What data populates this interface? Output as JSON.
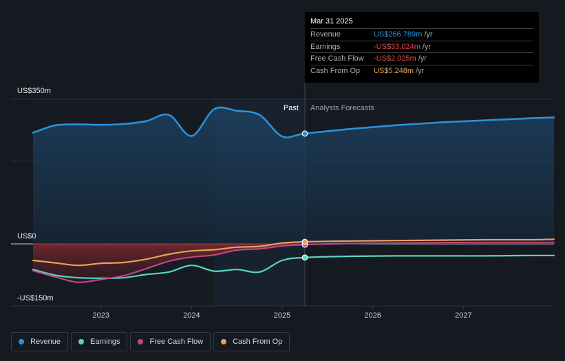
{
  "colors": {
    "revenue": "#2e8fd8",
    "earnings": "#58d5c4",
    "free_cash_flow": "#c0458a",
    "cash_from_op": "#e4a35a",
    "background": "#151a21",
    "past_highlight": "#1b2a3a"
  },
  "tooltip": {
    "date": "Mar 31 2025",
    "rows": [
      {
        "label": "Revenue",
        "value": "US$266.789m",
        "unit": "/yr",
        "color": "#2e8fd8"
      },
      {
        "label": "Earnings",
        "value": "-US$33.024m",
        "unit": "/yr",
        "color": "#e04b4b"
      },
      {
        "label": "Free Cash Flow",
        "value": "-US$2.025m",
        "unit": "/yr",
        "color": "#e04b4b"
      },
      {
        "label": "Cash From Op",
        "value": "US$5.248m",
        "unit": "/yr",
        "color": "#e4a35a"
      }
    ]
  },
  "labels": {
    "past": "Past",
    "forecast": "Analysts Forecasts"
  },
  "legend": [
    {
      "label": "Revenue",
      "color": "#2e8fd8"
    },
    {
      "label": "Earnings",
      "color": "#58d5c4"
    },
    {
      "label": "Free Cash Flow",
      "color": "#c0458a"
    },
    {
      "label": "Cash From Op",
      "color": "#e4a35a"
    }
  ],
  "chart_data": {
    "type": "line",
    "y_tick_labels": [
      "US$350m",
      "US$0",
      "-US$150m"
    ],
    "x_tick_labels": [
      "2023",
      "2024",
      "2025",
      "2026",
      "2027"
    ],
    "ylim": [
      -150,
      350
    ],
    "xlim": [
      2022.25,
      2028.0
    ],
    "past_end": 2025.25,
    "highlight_start": 2024.25,
    "grid": true,
    "series": [
      {
        "name": "Revenue",
        "color": "#2e8fd8",
        "x": [
          2022.25,
          2022.5,
          2022.75,
          2023.0,
          2023.25,
          2023.5,
          2023.75,
          2024.0,
          2024.25,
          2024.5,
          2024.75,
          2025.0,
          2025.25,
          2025.75,
          2026.25,
          2026.75,
          2027.25,
          2027.75,
          2028.0
        ],
        "values": [
          269,
          287,
          289,
          288,
          290,
          297,
          312,
          261,
          326,
          322,
          312,
          260,
          267,
          278,
          287,
          294,
          299,
          304,
          306
        ]
      },
      {
        "name": "Earnings",
        "color": "#58d5c4",
        "x": [
          2022.25,
          2022.5,
          2022.75,
          2023.0,
          2023.25,
          2023.5,
          2023.75,
          2024.0,
          2024.25,
          2024.5,
          2024.75,
          2025.0,
          2025.25,
          2025.75,
          2026.25,
          2026.75,
          2027.25,
          2027.75,
          2028.0
        ],
        "values": [
          -62,
          -76,
          -82,
          -83,
          -82,
          -74,
          -68,
          -52,
          -66,
          -62,
          -68,
          -40,
          -33,
          -30,
          -29,
          -29,
          -29,
          -28,
          -28
        ]
      },
      {
        "name": "Free Cash Flow",
        "color": "#c0458a",
        "x": [
          2022.25,
          2022.5,
          2022.75,
          2023.0,
          2023.25,
          2023.5,
          2023.75,
          2024.0,
          2024.25,
          2024.5,
          2024.75,
          2025.0,
          2025.25,
          2025.75,
          2026.25,
          2026.75,
          2027.25,
          2027.75,
          2028.0
        ],
        "values": [
          -65,
          -80,
          -93,
          -86,
          -77,
          -60,
          -42,
          -32,
          -27,
          -15,
          -12,
          -5,
          -2,
          1,
          2,
          3,
          3,
          3,
          3
        ]
      },
      {
        "name": "Cash From Op",
        "color": "#e4a35a",
        "x": [
          2022.25,
          2022.5,
          2022.75,
          2023.0,
          2023.25,
          2023.5,
          2023.75,
          2024.0,
          2024.25,
          2024.5,
          2024.75,
          2025.0,
          2025.25,
          2025.75,
          2026.25,
          2026.75,
          2027.25,
          2027.75,
          2028.0
        ],
        "values": [
          -40,
          -46,
          -52,
          -47,
          -45,
          -37,
          -25,
          -17,
          -14,
          -8,
          -6,
          2,
          5,
          7,
          8,
          9,
          10,
          10,
          11
        ]
      }
    ]
  }
}
